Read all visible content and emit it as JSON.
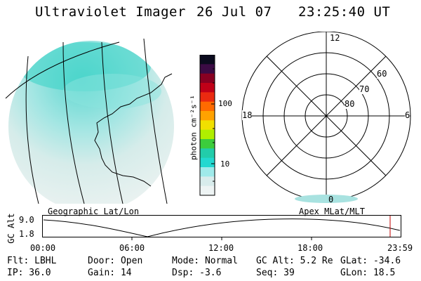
{
  "header": {
    "title": "Ultraviolet Imager",
    "date": "26 Jul 07",
    "time": "23:25:40 UT"
  },
  "colorbar": {
    "unit_label": "photon cm⁻²s⁻¹",
    "ticks": [
      "100",
      "10"
    ],
    "colors": [
      "#0b0b1e",
      "#3b0b44",
      "#880022",
      "#c00018",
      "#ea2a10",
      "#ff6a00",
      "#ffa200",
      "#f0e000",
      "#b0ee00",
      "#3ccc3c",
      "#22ccaa",
      "#22d8d0",
      "#9feaea",
      "#d8ecec",
      "#eef4f4"
    ]
  },
  "polar": {
    "mlt_labels": {
      "top": "12",
      "left": "18",
      "right": "6",
      "bottom": "0"
    },
    "lat_labels": [
      "60",
      "70",
      "80"
    ]
  },
  "plot": {
    "left_title": "Geographic Lat/Lon",
    "right_title": "Apex MLat/MLT",
    "ylabel": "GC Alt",
    "yticks": [
      "9.0",
      "1.8"
    ],
    "xticks": [
      "00:00",
      "06:00",
      "12:00",
      "18:00",
      "23:59"
    ]
  },
  "info": {
    "row1": {
      "flt": "Flt: LBHL",
      "door": "Door: Open",
      "mode": "Mode: Normal",
      "gcalt": "GC Alt: 5.2 Re",
      "glat": "GLat: -34.6"
    },
    "row2": {
      "ip": "IP: 36.0",
      "gain": "Gain: 14",
      "dsp": "Dsp:   -3.6",
      "seq": "Seq: 39",
      "glon": "GLon:  18.5"
    }
  }
}
